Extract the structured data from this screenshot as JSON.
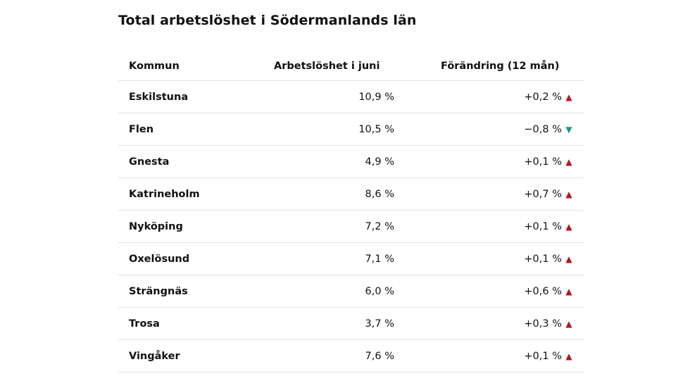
{
  "title": "Total arbetslöshet i Södermanlands län",
  "headers": {
    "kommun": "Kommun",
    "arbetsloshet": "Arbetslöshet i juni",
    "forandring": "Förändring (12 mån)"
  },
  "colors": {
    "up": "#b5171d",
    "down": "#1a9a8e"
  },
  "rows": [
    {
      "kommun": "Eskilstuna",
      "arbetsloshet": "10,9 %",
      "forandring": "+0,2 %",
      "direction": "up",
      "arrow": "▲"
    },
    {
      "kommun": "Flen",
      "arbetsloshet": "10,5 %",
      "forandring": "−0,8 %",
      "direction": "down",
      "arrow": "▼"
    },
    {
      "kommun": "Gnesta",
      "arbetsloshet": "4,9 %",
      "forandring": "+0,1 %",
      "direction": "up",
      "arrow": "▲"
    },
    {
      "kommun": "Katrineholm",
      "arbetsloshet": "8,6 %",
      "forandring": "+0,7 %",
      "direction": "up",
      "arrow": "▲"
    },
    {
      "kommun": "Nyköping",
      "arbetsloshet": "7,2 %",
      "forandring": "+0,1 %",
      "direction": "up",
      "arrow": "▲"
    },
    {
      "kommun": "Oxelösund",
      "arbetsloshet": "7,1 %",
      "forandring": "+0,1 %",
      "direction": "up",
      "arrow": "▲"
    },
    {
      "kommun": "Strängnäs",
      "arbetsloshet": "6,0 %",
      "forandring": "+0,6 %",
      "direction": "up",
      "arrow": "▲"
    },
    {
      "kommun": "Trosa",
      "arbetsloshet": "3,7 %",
      "forandring": "+0,3 %",
      "direction": "up",
      "arrow": "▲"
    },
    {
      "kommun": "Vingåker",
      "arbetsloshet": "7,6 %",
      "forandring": "+0,1 %",
      "direction": "up",
      "arrow": "▲"
    }
  ]
}
